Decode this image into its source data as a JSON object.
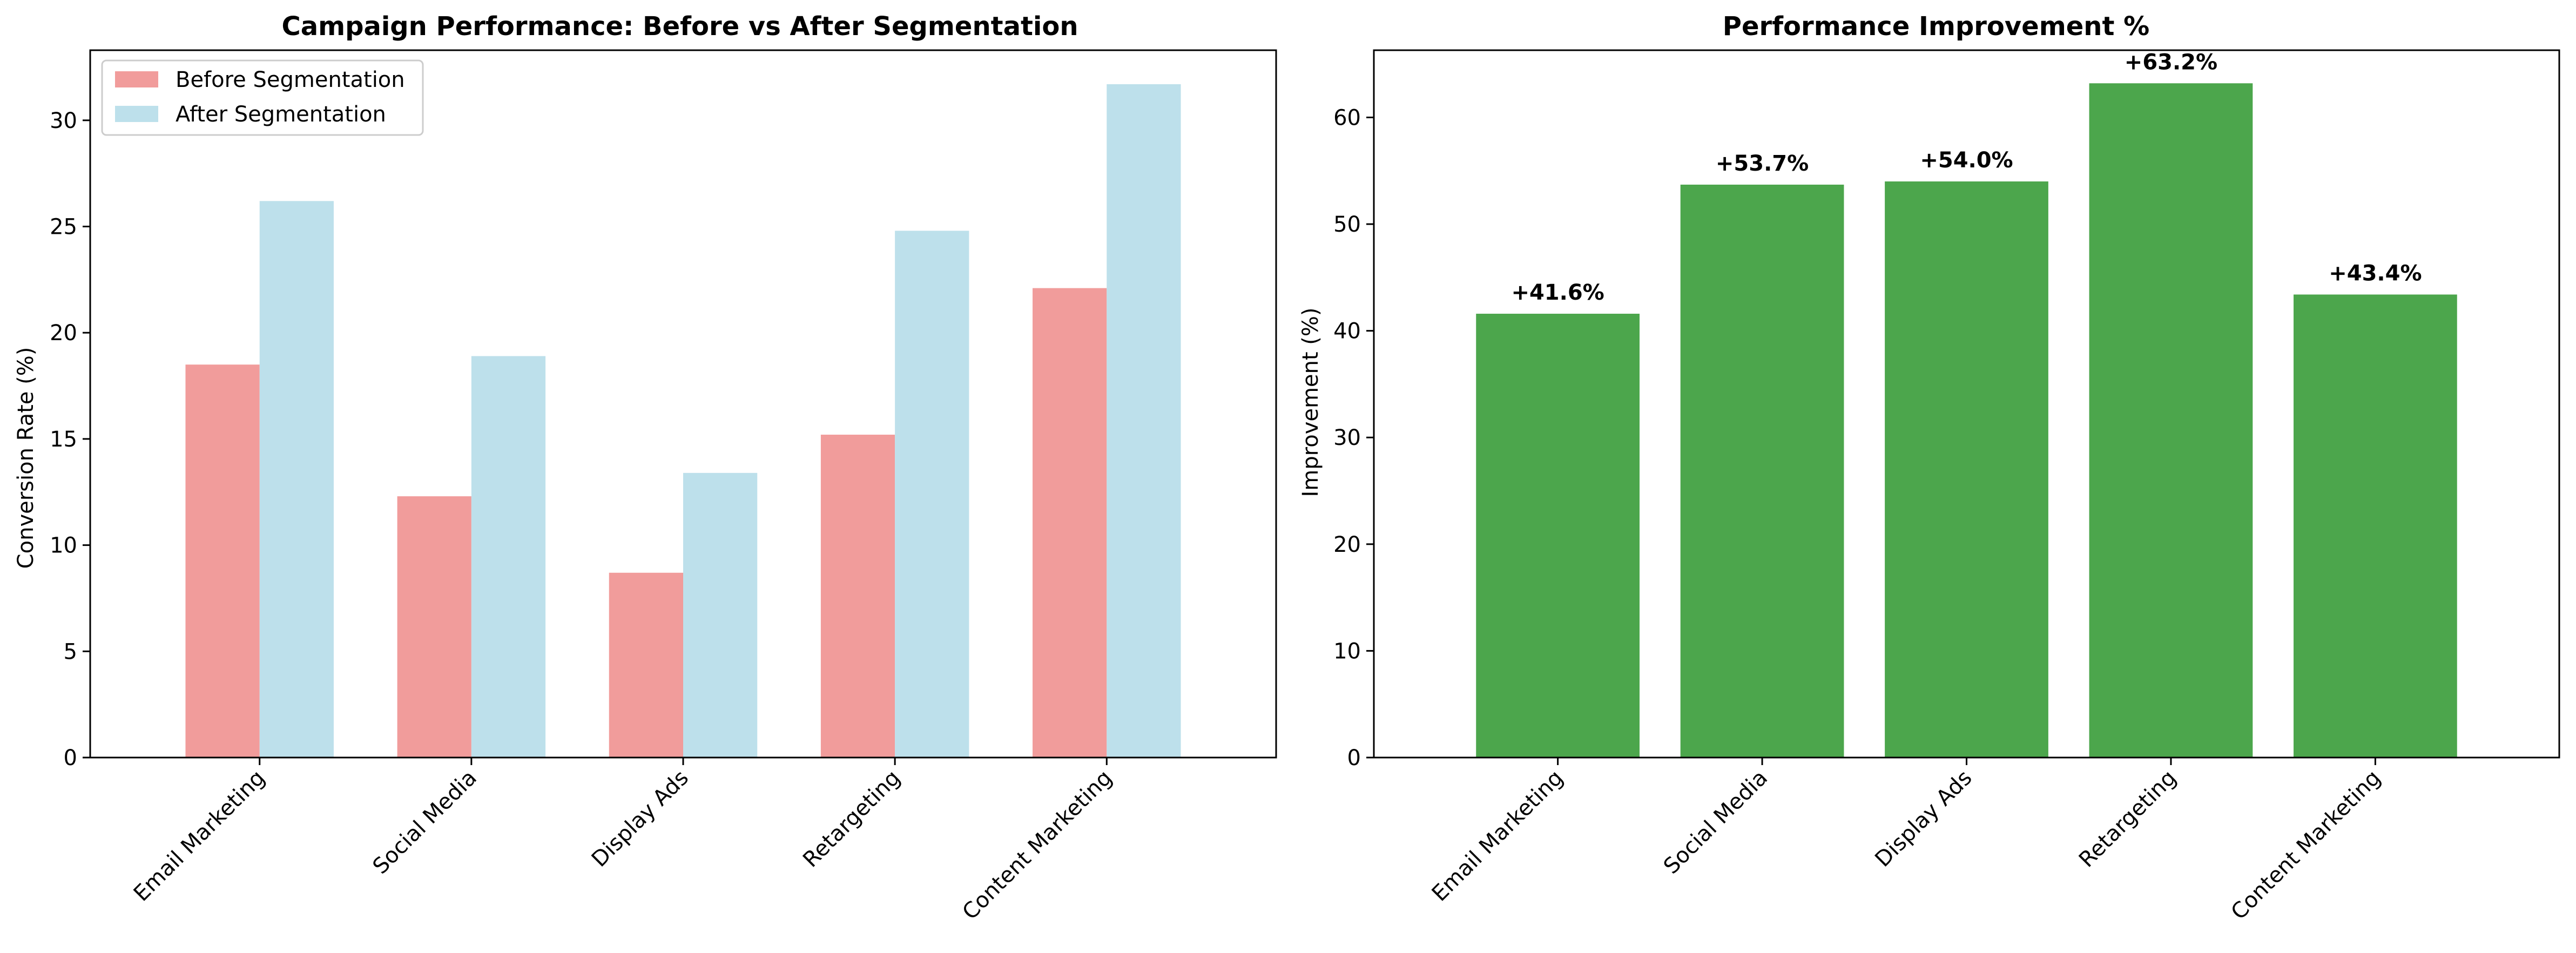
{
  "chart_data": [
    {
      "type": "bar",
      "title": "Campaign Performance: Before vs After Segmentation",
      "xlabel": "",
      "ylabel": "Conversion Rate (%)",
      "categories": [
        "Email Marketing",
        "Social Media",
        "Display Ads",
        "Retargeting",
        "Content Marketing"
      ],
      "series": [
        {
          "name": "Before Segmentation",
          "values": [
            18.5,
            12.3,
            8.7,
            15.2,
            22.1
          ],
          "color": "#f19c9b"
        },
        {
          "name": "After Segmentation",
          "values": [
            26.2,
            18.9,
            13.4,
            24.8,
            31.7
          ],
          "color": "#bde0eb"
        }
      ],
      "yticks": [
        0,
        5,
        10,
        15,
        20,
        25,
        30
      ],
      "ylim": [
        0,
        33.3
      ],
      "legend": "top-left",
      "grid": false
    },
    {
      "type": "bar",
      "title": "Performance Improvement %",
      "xlabel": "",
      "ylabel": "Improvement (%)",
      "categories": [
        "Email Marketing",
        "Social Media",
        "Display Ads",
        "Retargeting",
        "Content Marketing"
      ],
      "values": [
        41.6,
        53.7,
        54.0,
        63.2,
        43.4
      ],
      "data_labels": [
        "+41.6%",
        "+53.7%",
        "+54.0%",
        "+63.2%",
        "+43.4%"
      ],
      "color": "#4ca64c",
      "yticks": [
        0,
        10,
        20,
        30,
        40,
        50,
        60
      ],
      "ylim": [
        0,
        66.3
      ],
      "grid": false
    }
  ]
}
